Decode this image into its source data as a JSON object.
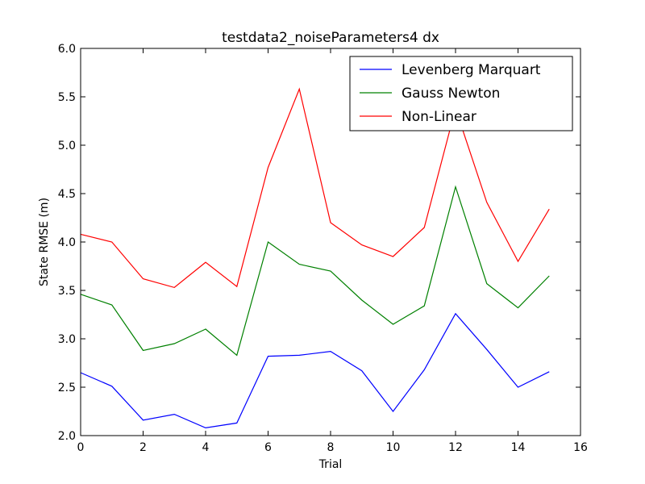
{
  "chart_data": {
    "type": "line",
    "title": "testdata2_noiseParameters4 dx",
    "xlabel": "Trial",
    "ylabel": "State RMSE (m)",
    "xlim": [
      0,
      16
    ],
    "ylim": [
      2.0,
      6.0
    ],
    "xticks": [
      "0",
      "2",
      "4",
      "6",
      "8",
      "10",
      "12",
      "14",
      "16"
    ],
    "yticks": [
      "2.0",
      "2.5",
      "3.0",
      "3.5",
      "4.0",
      "4.5",
      "5.0",
      "5.5",
      "6.0"
    ],
    "grid": false,
    "legend_position": "top-right",
    "x": [
      0,
      1,
      2,
      3,
      4,
      5,
      6,
      7,
      8,
      9,
      10,
      11,
      12,
      13,
      14,
      15
    ],
    "series": [
      {
        "name": "Levenberg Marquart",
        "color": "#0000ff",
        "values": [
          2.65,
          2.51,
          2.16,
          2.22,
          2.08,
          2.13,
          2.82,
          2.83,
          2.87,
          2.67,
          2.25,
          2.68,
          3.26,
          2.89,
          2.5,
          2.66
        ]
      },
      {
        "name": "Gauss Newton",
        "color": "#008000",
        "values": [
          3.46,
          3.35,
          2.88,
          2.95,
          3.1,
          2.83,
          4.0,
          3.77,
          3.7,
          3.4,
          3.15,
          3.34,
          4.57,
          3.57,
          3.32,
          3.65
        ]
      },
      {
        "name": "Non-Linear",
        "color": "#ff0000",
        "values": [
          4.08,
          4.0,
          3.62,
          3.53,
          3.79,
          3.54,
          4.77,
          5.58,
          4.2,
          3.97,
          3.85,
          4.15,
          5.38,
          4.41,
          3.8,
          4.34
        ]
      }
    ]
  }
}
